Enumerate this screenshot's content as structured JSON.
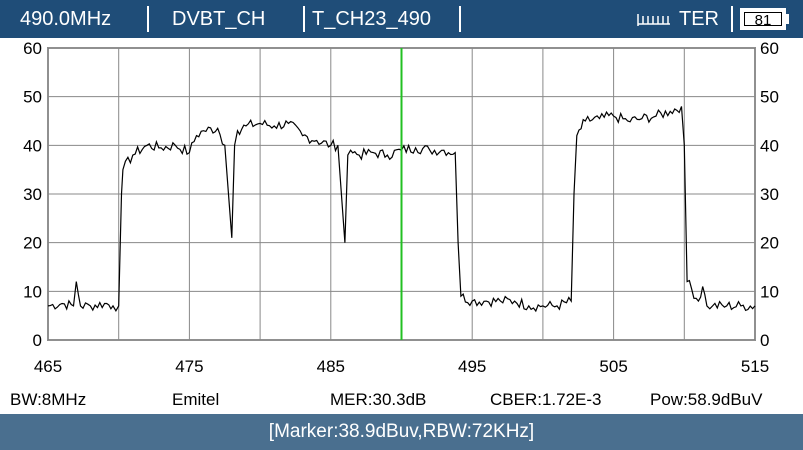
{
  "header": {
    "frequency": "490.0MHz",
    "mode": "DVBT_CH",
    "channel": "T_CH23_490",
    "band": "TER",
    "antenna_icon": "antenna-icon",
    "battery": "81"
  },
  "status": {
    "bw": "BW:8MHz",
    "operator": "Emitel",
    "mer": "MER:30.3dB",
    "cber": "CBER:1.72E-3",
    "pow": "Pow:58.9dBuV"
  },
  "footer": {
    "marker_info": "[Marker:38.9dBuv,RBW:72KHz]"
  },
  "colors": {
    "header_bg": "#1f4d78",
    "footer_bg": "#4a6f8f",
    "marker": "#22c022",
    "trace": "#000000",
    "grid": "#888888"
  },
  "chart_data": {
    "type": "line",
    "xlim": [
      465,
      515
    ],
    "ylim": [
      0,
      60
    ],
    "x_ticks": [
      465,
      475,
      485,
      495,
      505,
      515
    ],
    "y_ticks": [
      0,
      10,
      20,
      30,
      40,
      50,
      60
    ],
    "x_tick_labels": [
      "465",
      "475",
      "485",
      "495",
      "505",
      "515"
    ],
    "y_tick_labels": [
      "0",
      "10",
      "20",
      "30",
      "40",
      "50",
      "60"
    ],
    "grid": true,
    "marker_x": 490,
    "series": [
      {
        "x": [
          465,
          466,
          466.8,
          467,
          467.3,
          468,
          469,
          469.6,
          470,
          470.2,
          470.3,
          471,
          472,
          473,
          474,
          475,
          475.5,
          476,
          477,
          477.5,
          478,
          478.2,
          478.4,
          479,
          480,
          481,
          482,
          483,
          484,
          485,
          485.5,
          486,
          486.2,
          486.4,
          487,
          488,
          489,
          490,
          491,
          492,
          493,
          493.8,
          494,
          494.2,
          495,
          496,
          497,
          498,
          499,
          500,
          501,
          502,
          502.2,
          502.4,
          503,
          504,
          505,
          506,
          507,
          508,
          509,
          509.8,
          510,
          510.2,
          511,
          511.3,
          511.6,
          512,
          513,
          514,
          515
        ],
        "y": [
          7,
          7.5,
          7,
          12,
          7,
          7,
          7.5,
          7,
          7,
          30,
          35,
          38,
          40,
          39.5,
          40,
          38.5,
          42,
          43,
          43.5,
          40,
          21,
          40,
          43,
          44,
          44.5,
          44,
          44.5,
          42,
          41,
          40,
          40,
          20,
          38,
          39,
          38,
          38.5,
          38,
          39,
          39.5,
          39,
          39,
          38.5,
          20,
          9,
          8,
          8,
          8,
          8,
          7,
          7,
          7,
          8,
          30,
          42,
          45,
          45.5,
          46,
          45,
          45.5,
          46,
          47,
          48,
          40,
          12,
          8,
          11,
          7,
          7,
          7,
          7,
          7
        ]
      }
    ]
  }
}
